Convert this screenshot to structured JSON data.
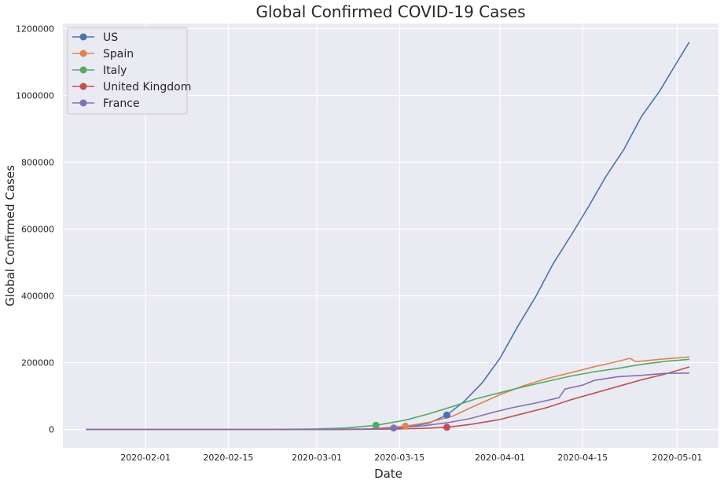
{
  "chart_data": {
    "type": "line",
    "title": "Global Confirmed COVID-19 Cases",
    "xlabel": "Date",
    "ylabel": "Global Confirmed Cases",
    "x_axis": {
      "type": "date",
      "range": [
        "2020-01-18",
        "2020-05-08"
      ],
      "ticks": [
        "2020-02-01",
        "2020-02-15",
        "2020-03-01",
        "2020-03-15",
        "2020-04-01",
        "2020-04-15",
        "2020-05-01"
      ]
    },
    "y_axis": {
      "range": [
        -55000,
        1215000
      ],
      "ticks": [
        0,
        200000,
        400000,
        600000,
        800000,
        1000000,
        1200000
      ]
    },
    "grid": true,
    "legend_position": "top-left",
    "series": [
      {
        "name": "US",
        "color": "#4c72b0",
        "x": [
          "2020-01-22",
          "2020-02-29",
          "2020-03-10",
          "2020-03-15",
          "2020-03-20",
          "2020-03-23",
          "2020-03-26",
          "2020-03-29",
          "2020-04-01",
          "2020-04-04",
          "2020-04-07",
          "2020-04-10",
          "2020-04-13",
          "2020-04-16",
          "2020-04-19",
          "2020-04-22",
          "2020-04-25",
          "2020-04-28",
          "2020-05-01",
          "2020-05-03"
        ],
        "y": [
          1,
          70,
          1000,
          3500,
          19000,
          43000,
          85000,
          140000,
          213000,
          308000,
          396000,
          496000,
          580000,
          667000,
          759000,
          839000,
          938000,
          1012000,
          1100000,
          1158000
        ],
        "marker": {
          "date": "2020-03-23",
          "value": 43000
        }
      },
      {
        "name": "Spain",
        "color": "#dd8452",
        "x": [
          "2020-01-22",
          "2020-03-01",
          "2020-03-10",
          "2020-03-16",
          "2020-03-20",
          "2020-03-24",
          "2020-03-28",
          "2020-04-01",
          "2020-04-05",
          "2020-04-09",
          "2020-04-13",
          "2020-04-17",
          "2020-04-21",
          "2020-04-23",
          "2020-04-24",
          "2020-04-28",
          "2020-05-03"
        ],
        "y": [
          0,
          80,
          1700,
          9900,
          21500,
          40000,
          73000,
          104000,
          131000,
          153000,
          170000,
          188000,
          204000,
          213000,
          203000,
          210000,
          217000
        ],
        "marker": {
          "date": "2020-03-16",
          "value": 9900
        }
      },
      {
        "name": "Italy",
        "color": "#55a868",
        "x": [
          "2020-01-22",
          "2020-02-22",
          "2020-03-01",
          "2020-03-06",
          "2020-03-11",
          "2020-03-16",
          "2020-03-20",
          "2020-03-24",
          "2020-03-28",
          "2020-04-01",
          "2020-04-05",
          "2020-04-09",
          "2020-04-13",
          "2020-04-17",
          "2020-04-21",
          "2020-04-25",
          "2020-04-29",
          "2020-05-03"
        ],
        "y": [
          0,
          60,
          1700,
          4600,
          12500,
          28000,
          47000,
          69000,
          92000,
          110000,
          128000,
          144000,
          160000,
          173000,
          183000,
          195000,
          204000,
          210000
        ],
        "marker": {
          "date": "2020-03-11",
          "value": 12500
        }
      },
      {
        "name": "United Kingdom",
        "color": "#c44e52",
        "x": [
          "2020-01-22",
          "2020-03-05",
          "2020-03-14",
          "2020-03-19",
          "2020-03-23",
          "2020-03-27",
          "2020-04-01",
          "2020-04-05",
          "2020-04-09",
          "2020-04-13",
          "2020-04-17",
          "2020-04-21",
          "2020-04-25",
          "2020-04-29",
          "2020-05-03"
        ],
        "y": [
          0,
          100,
          1200,
          3300,
          6700,
          15000,
          30000,
          48000,
          66000,
          89000,
          109000,
          129000,
          149000,
          166000,
          187000
        ],
        "marker": {
          "date": "2020-03-23",
          "value": 6700
        }
      },
      {
        "name": "France",
        "color": "#8172b2",
        "x": [
          "2020-01-22",
          "2020-03-01",
          "2020-03-09",
          "2020-03-14",
          "2020-03-19",
          "2020-03-23",
          "2020-03-27",
          "2020-03-31",
          "2020-04-03",
          "2020-04-07",
          "2020-04-11",
          "2020-04-12",
          "2020-04-15",
          "2020-04-17",
          "2020-04-21",
          "2020-04-25",
          "2020-04-29",
          "2020-05-03"
        ],
        "y": [
          0,
          100,
          1400,
          4500,
          11000,
          20000,
          33000,
          52000,
          65000,
          79000,
          95000,
          121000,
          133000,
          147000,
          158000,
          162000,
          168000,
          169000
        ],
        "marker": {
          "date": "2020-03-14",
          "value": 4500
        }
      }
    ]
  }
}
